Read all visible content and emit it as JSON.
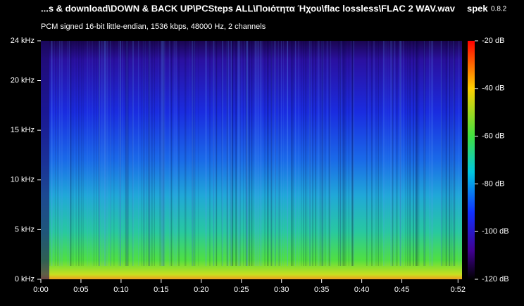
{
  "chart_data": {
    "type": "spectrogram",
    "title": "...s & download\\DOWN & BACK UP\\PCSteps ALL\\Ποιότητα Ήχου\\flac lossless\\FLAC 2 WAV.wav",
    "app_name": "spek",
    "app_version": "0.8.2",
    "subtitle": "PCM signed 16-bit little-endian, 1536 kbps, 48000 Hz, 2 channels",
    "xlim": [
      0,
      52.5
    ],
    "xticks": [
      {
        "value": 0,
        "label": "0:00"
      },
      {
        "value": 5,
        "label": "0:05"
      },
      {
        "value": 10,
        "label": "0:10"
      },
      {
        "value": 15,
        "label": "0:15"
      },
      {
        "value": 20,
        "label": "0:20"
      },
      {
        "value": 25,
        "label": "0:25"
      },
      {
        "value": 30,
        "label": "0:30"
      },
      {
        "value": 35,
        "label": "0:35"
      },
      {
        "value": 40,
        "label": "0:40"
      },
      {
        "value": 45,
        "label": "0:45"
      },
      {
        "value": 52,
        "label": "0:52"
      }
    ],
    "ylim": [
      0,
      24
    ],
    "yticks": [
      {
        "value": 0,
        "label": "0 kHz"
      },
      {
        "value": 5,
        "label": "5 kHz"
      },
      {
        "value": 10,
        "label": "10 kHz"
      },
      {
        "value": 15,
        "label": "15 kHz"
      },
      {
        "value": 20,
        "label": "20 kHz"
      },
      {
        "value": 24,
        "label": "24 kHz"
      }
    ],
    "clim": [
      -120,
      -20
    ],
    "cticks": [
      {
        "value": -20,
        "label": "-20 dB"
      },
      {
        "value": -40,
        "label": "-40 dB"
      },
      {
        "value": -60,
        "label": "-60 dB"
      },
      {
        "value": -80,
        "label": "-80 dB"
      },
      {
        "value": -100,
        "label": "-100 dB"
      },
      {
        "value": -120,
        "label": "-120 dB"
      }
    ]
  }
}
